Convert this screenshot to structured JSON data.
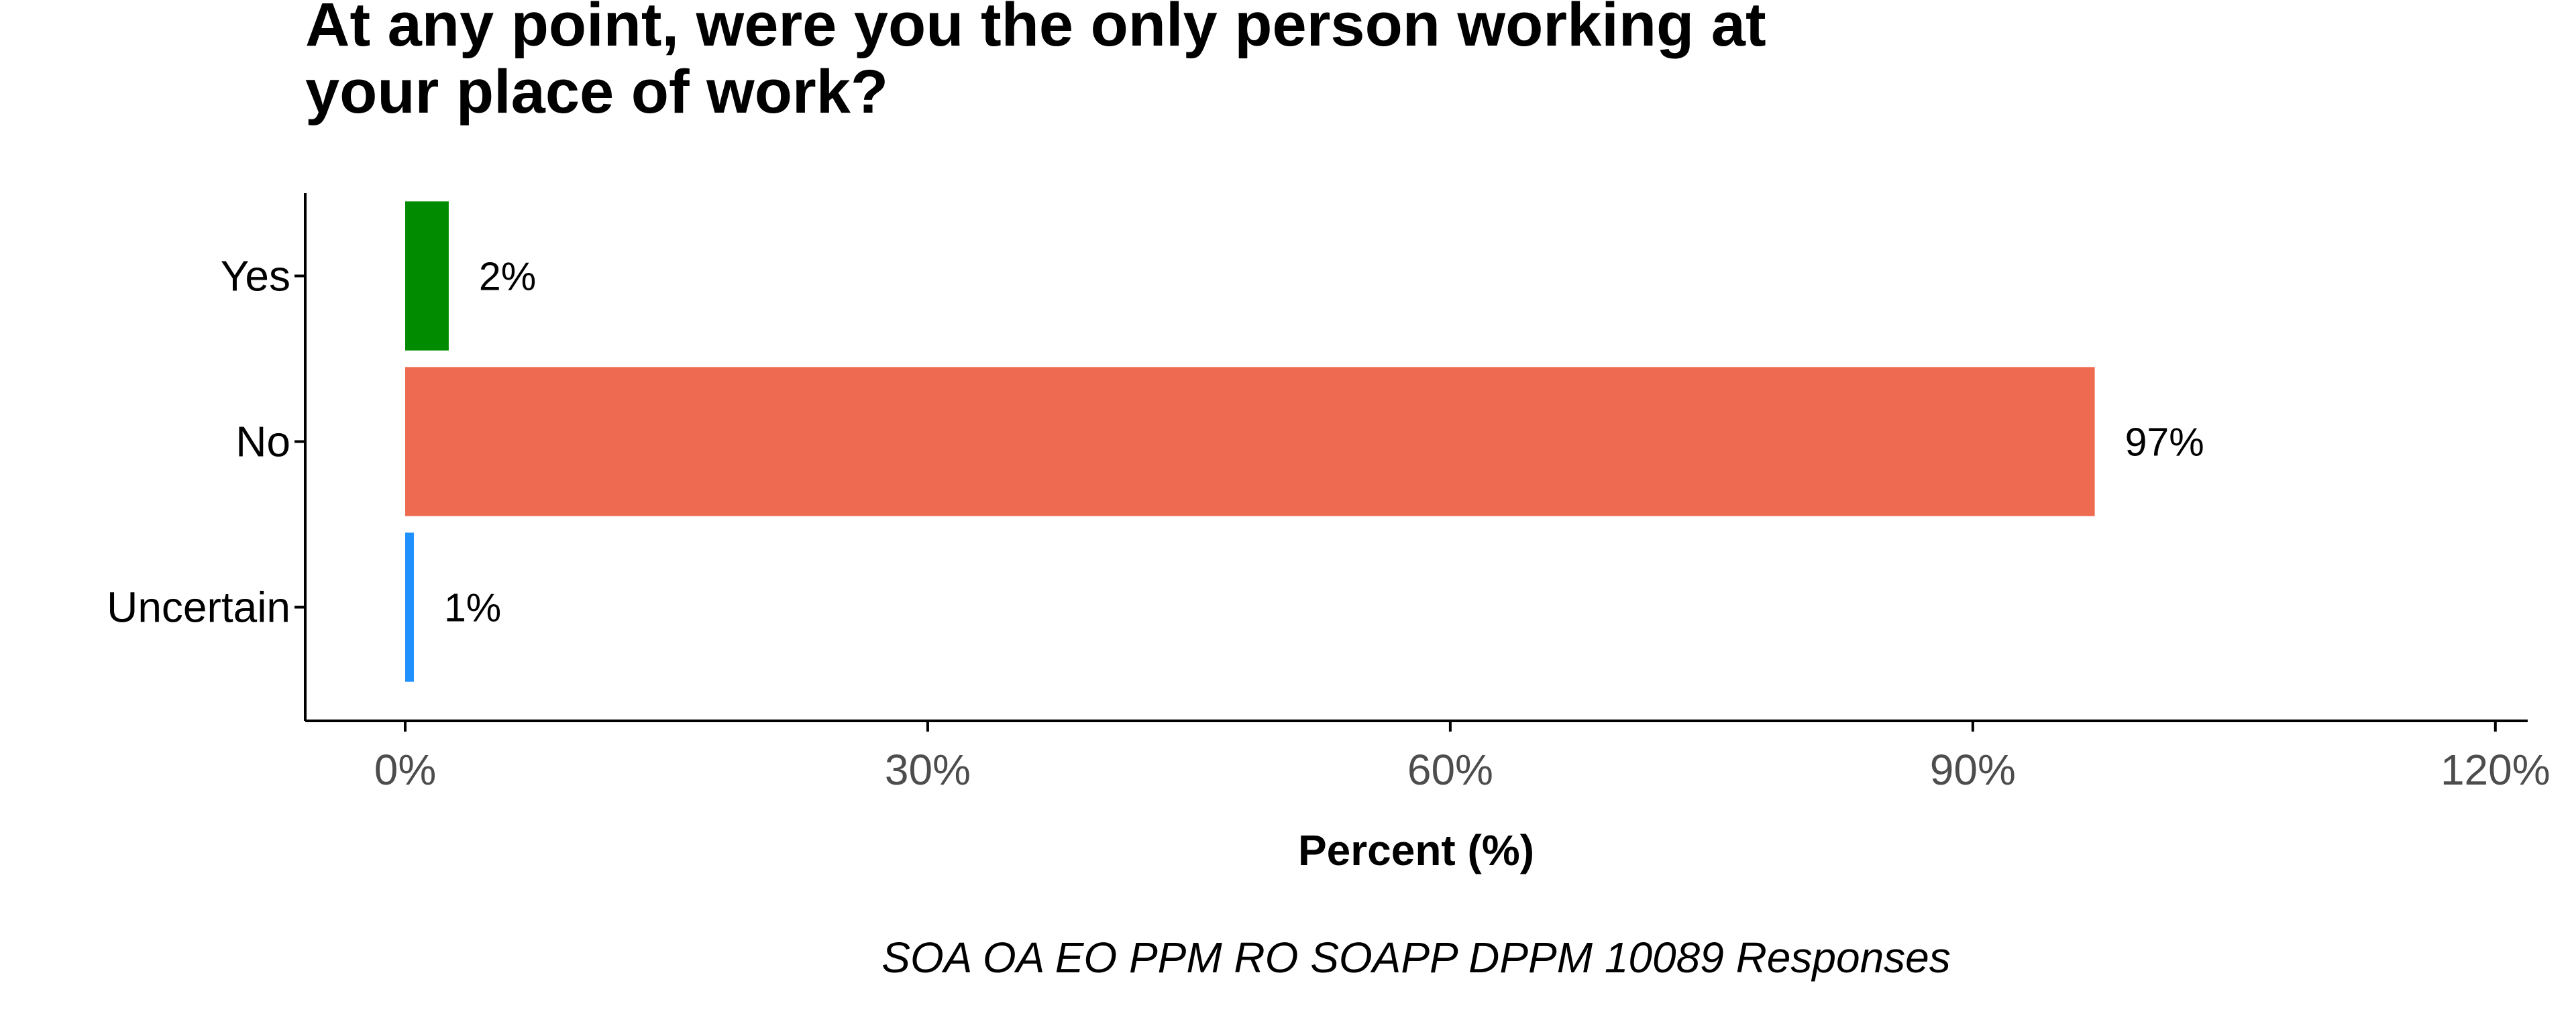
{
  "chart_data": {
    "type": "bar",
    "orientation": "horizontal",
    "title_lines": [
      "At any point, were you the only person working at",
      "your place of work?"
    ],
    "categories": [
      "Yes",
      "No",
      "Uncertain"
    ],
    "values": [
      2.5,
      97,
      0.5
    ],
    "value_labels": [
      "2%",
      "97%",
      "1%"
    ],
    "colors": [
      "#008B00",
      "#EE6A50",
      "#1E90FF"
    ],
    "xlabel": "Percent (%)",
    "ylabel": "",
    "xlim": [
      0,
      120
    ],
    "x_ticks": [
      0,
      30,
      60,
      90,
      120
    ],
    "x_tick_labels": [
      "0%",
      "30%",
      "60%",
      "90%",
      "120%"
    ],
    "caption": "SOA OA EO PPM RO SOAPP DPPM 10089 Responses",
    "grid": false,
    "legend": "none"
  }
}
